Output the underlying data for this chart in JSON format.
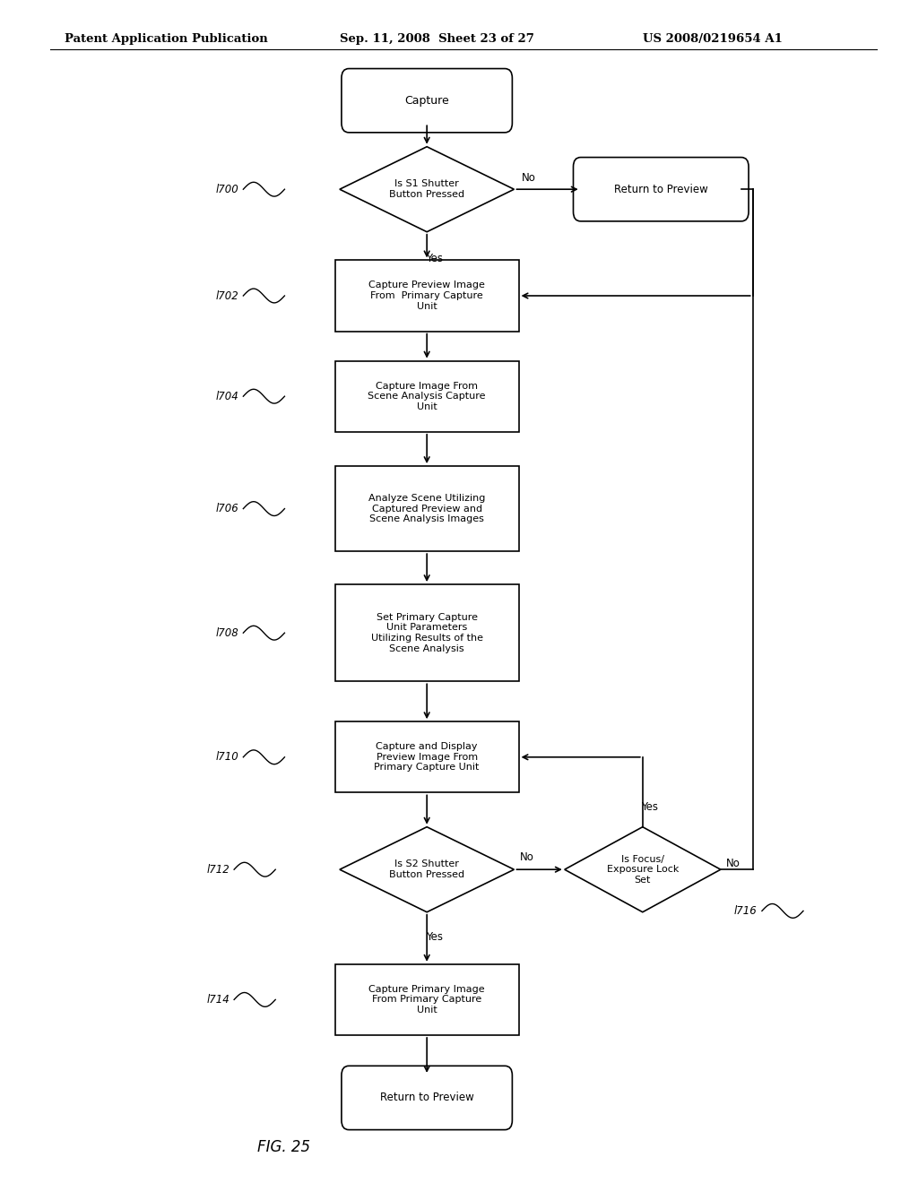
{
  "bg_color": "#ffffff",
  "header_left": "Patent Application Publication",
  "header_mid": "Sep. 11, 2008  Sheet 23 of 27",
  "header_right": "US 2008/0219654 A1",
  "fig_label": "FIG. 25",
  "line_color": "#000000",
  "text_color": "#000000"
}
